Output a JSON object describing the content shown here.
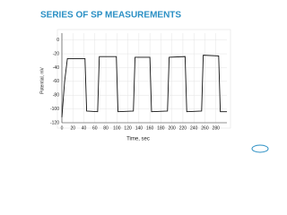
{
  "chart_data": {
    "type": "line",
    "title": "SERIES OF SP MEASUREMENTS",
    "x_label": "Time, sec",
    "y_label": "Potential, mV",
    "x": [
      0,
      5,
      10,
      42,
      45,
      65,
      68,
      99,
      102,
      130,
      133,
      160,
      163,
      192,
      195,
      224,
      227,
      254,
      257,
      285,
      288,
      300
    ],
    "values": [
      -112,
      -60,
      -27,
      -27,
      -103,
      -104,
      -24,
      -24,
      -104,
      -103,
      -25,
      -25,
      -104,
      -103,
      -25,
      -24,
      -104,
      -103,
      -22,
      -23,
      -104,
      -104
    ],
    "color": "#111111",
    "xlim": [
      0,
      300
    ],
    "xticks": [
      0,
      20,
      40,
      60,
      80,
      100,
      120,
      140,
      160,
      180,
      200,
      220,
      240,
      260,
      280
    ],
    "ylim": [
      -120,
      10
    ],
    "yticks": [
      0,
      -20,
      -40,
      -60,
      -80,
      -100,
      -120
    ],
    "grid": true
  }
}
